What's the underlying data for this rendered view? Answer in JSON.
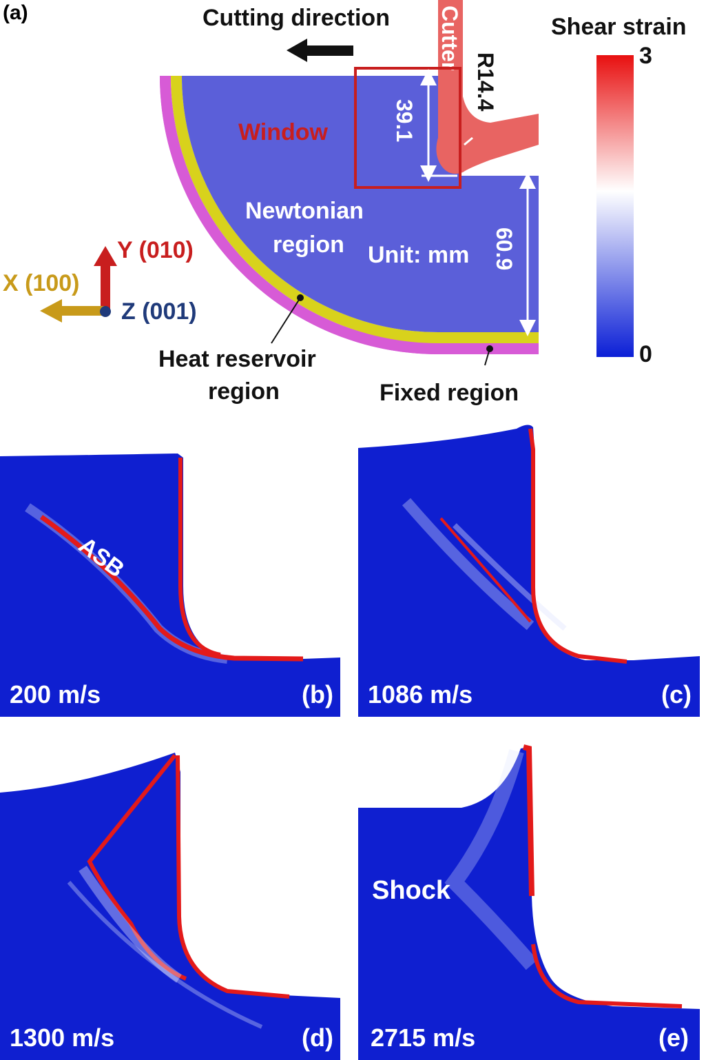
{
  "panel_a": {
    "panel_label": "(a)",
    "cutting_direction": "Cutting direction",
    "cutter": "Cutter",
    "radius": "R14.4",
    "window": "Window",
    "dim_window": "39.1",
    "dim_height": "60.9",
    "newtonian_line1": "Newtonian",
    "newtonian_line2": "region",
    "unit": "Unit: mm",
    "heat_line1": "Heat reservoir",
    "heat_line2": "region",
    "fixed": "Fixed region",
    "axis_y": "Y (010)",
    "axis_x": "X (100)",
    "axis_z": "Z (001)",
    "colorbar": {
      "title": "Shear strain",
      "max": "3",
      "min": "0",
      "colors": [
        "#e81010",
        "#ffffff",
        "#0b1fd6"
      ]
    }
  },
  "panels": [
    {
      "id": "b",
      "speed": "200 m/s",
      "label": "(b)",
      "annotation": "ASB"
    },
    {
      "id": "c",
      "speed": "1086 m/s",
      "label": "(c)"
    },
    {
      "id": "d",
      "speed": "1300 m/s",
      "label": "(d)"
    },
    {
      "id": "e",
      "speed": "2715 m/s",
      "label": "(e)",
      "annotation": "Shock"
    }
  ],
  "colors": {
    "material": "#5b5fd9",
    "simulation_blue": "#0f1fd0",
    "band_red": "#e31a1a",
    "heat_reservoir": "#d8d21c",
    "fixed_region": "#d75bd6",
    "window_box": "#c81e1e",
    "cutter": "#e86462",
    "axis_y": "#c81e1e",
    "axis_x": "#c89a1a",
    "axis_z": "#1f3a7a"
  }
}
